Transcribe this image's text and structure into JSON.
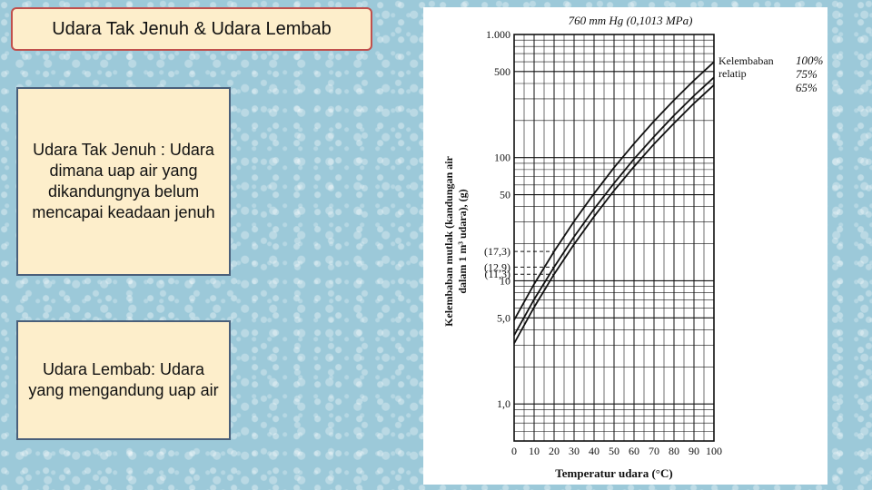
{
  "slide": {
    "title": "Udara Tak Jenuh & Udara Lembab",
    "box1_text": "Udara Tak Jenuh : Udara dimana uap air yang dikandungnya belum mencapai keadaan jenuh",
    "box2_text": "Udara Lembab: Udara yang mengandung uap air"
  },
  "chart_data": {
    "type": "line",
    "title": "760 mm Hg (0,1013 MPa)",
    "xlabel": "Temperatur udara (°C)",
    "ylabel_line1": "Kelembaban mutlak (kandungan air",
    "ylabel_line2": "dalam 1 m³ udara), (g)",
    "y_scale": "log",
    "xlim": [
      0,
      100
    ],
    "ylim": [
      0.5,
      1000
    ],
    "x_ticks": [
      0,
      10,
      20,
      30,
      40,
      50,
      60,
      70,
      80,
      90,
      100
    ],
    "x_tick_labels": [
      "0",
      "10",
      "20",
      "30",
      "40",
      "50",
      "60",
      "70",
      "80",
      "90",
      "100"
    ],
    "y_ticks": [
      1,
      5,
      10,
      11.3,
      12.9,
      17.3,
      50,
      100,
      500,
      1000
    ],
    "y_tick_labels": [
      "1,0",
      "5,0",
      "10",
      "(11,3)",
      "(12,9)",
      "(17,3)",
      "50",
      "100",
      "500",
      "1.000"
    ],
    "legend_title_line1": "Kelembaban",
    "legend_title_line2": "relatip",
    "reference_temperature": 20,
    "series": [
      {
        "name": "100%",
        "x": [
          0,
          10,
          20,
          30,
          40,
          50,
          60,
          70,
          80,
          90,
          100
        ],
        "values": [
          4.8,
          9.4,
          17.3,
          30.4,
          51.1,
          83,
          130,
          198,
          293,
          424,
          598
        ]
      },
      {
        "name": "75%",
        "x": [
          0,
          10,
          20,
          30,
          40,
          50,
          60,
          70,
          80,
          90,
          100
        ],
        "values": [
          3.6,
          7.05,
          12.9,
          22.8,
          38.3,
          62,
          97.5,
          148,
          220,
          318,
          448
        ]
      },
      {
        "name": "65%",
        "x": [
          0,
          10,
          20,
          30,
          40,
          50,
          60,
          70,
          80,
          90,
          100
        ],
        "values": [
          3.1,
          6.1,
          11.3,
          19.8,
          33.2,
          54,
          84.5,
          129,
          190,
          276,
          389
        ]
      }
    ],
    "line_color": "#111111",
    "grid": true
  }
}
